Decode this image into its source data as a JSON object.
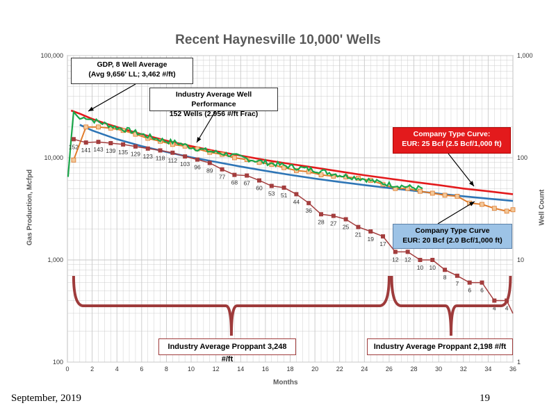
{
  "page": {
    "title": "Recent Haynesville 10,000' Wells",
    "footer_date": "September, 2019",
    "footer_page": "19"
  },
  "chart_data": {
    "type": "line",
    "title": "Recent Haynesville 10,000' Wells",
    "xlabel": "Months",
    "ylabel": "Gas Production, Mcfpd",
    "y2label": "Well Count",
    "xlim": [
      0,
      36
    ],
    "ylim": [
      100,
      100000
    ],
    "y2lim": [
      1,
      1000
    ],
    "yscale": "log",
    "y2scale": "log",
    "grid": true,
    "x_ticks": [
      "0",
      "2",
      "4",
      "6",
      "8",
      "10",
      "12",
      "14",
      "16",
      "18",
      "20",
      "22",
      "24",
      "26",
      "28",
      "30",
      "32",
      "34",
      "36"
    ],
    "y_ticks": [
      "100",
      "1,000",
      "10,000",
      "100,000"
    ],
    "y2_ticks": [
      "1",
      "10",
      "100",
      "1,000"
    ],
    "colors": {
      "gdp": "#1aa64a",
      "industry": "#e07b2a",
      "industry_marker": "#f2c79a",
      "type_curve_25": "#e31a1c",
      "type_curve_20": "#2e75b6",
      "well_count": "#a33d3d",
      "grid": "#c8c8c8"
    },
    "series": [
      {
        "key": "type_curve_25",
        "x": [
          0.3,
          1,
          2,
          3,
          4,
          6,
          8,
          10,
          12,
          14,
          16,
          18,
          20,
          22,
          24,
          26,
          28,
          30,
          32,
          34,
          36
        ],
        "y": [
          29000,
          27000,
          24000,
          21800,
          20000,
          17000,
          14700,
          13000,
          11600,
          10500,
          9500,
          8700,
          8000,
          7350,
          6750,
          6250,
          5800,
          5400,
          5000,
          4700,
          4400
        ]
      },
      {
        "key": "type_curve_20",
        "x": [
          1,
          2,
          4,
          6,
          8,
          10,
          12,
          14,
          16,
          18,
          20,
          22,
          24,
          26,
          28,
          30,
          32,
          34,
          36
        ],
        "y": [
          21000,
          18500,
          15200,
          13000,
          11400,
          10100,
          9100,
          8200,
          7450,
          6800,
          6250,
          5800,
          5400,
          5050,
          4750,
          4450,
          4200,
          3980,
          3780
        ]
      },
      {
        "key": "industry",
        "x": [
          0.5,
          1.5,
          2.5,
          3.5,
          4.5,
          5.5,
          6.5,
          7.5,
          8.5,
          9.5,
          10.5,
          11.5,
          12.5,
          13.5,
          14.5,
          15.5,
          16.5,
          17.5,
          18.5,
          19.5,
          20.5,
          21.5,
          22.5,
          23.5,
          24.5,
          25.5,
          26.5,
          27.5,
          28.5,
          29.5,
          30.5,
          31.5,
          32.5,
          33.5,
          34.5,
          35.5,
          36
        ],
        "y": [
          9500,
          20000,
          20000,
          19500,
          18500,
          17000,
          15500,
          14500,
          13500,
          13000,
          12200,
          11300,
          10800,
          10000,
          9600,
          9000,
          8600,
          8000,
          7500,
          7300,
          6800,
          6600,
          6500,
          6300,
          6000,
          5500,
          5000,
          5000,
          4700,
          4500,
          4300,
          4200,
          3600,
          3500,
          3200,
          3000,
          3100
        ]
      },
      {
        "key": "gdp",
        "x": [
          0.05,
          0.3,
          0.5,
          1,
          1.5,
          2,
          3,
          4,
          5,
          6,
          7,
          8,
          9,
          10,
          11,
          12,
          13,
          14,
          15,
          16,
          17,
          18,
          19,
          20,
          21,
          22,
          23,
          24,
          25,
          26,
          27,
          28,
          28.7
        ],
        "y": [
          6500,
          15000,
          28000,
          24000,
          25000,
          23500,
          21500,
          19700,
          18500,
          17000,
          15600,
          14600,
          13900,
          12700,
          11900,
          11300,
          10800,
          10100,
          9500,
          9000,
          8600,
          8200,
          7900,
          7600,
          7200,
          6800,
          6500,
          6200,
          5800,
          5500,
          5300,
          5100,
          5000
        ]
      },
      {
        "key": "well_count",
        "x": [
          0.5,
          1.5,
          2.5,
          3.5,
          4.5,
          5.5,
          6.5,
          7.5,
          8.5,
          9.5,
          10.5,
          11.5,
          12.5,
          13.5,
          14.5,
          15.5,
          16.5,
          17.5,
          18.5,
          19.5,
          20.5,
          21.5,
          22.5,
          23.5,
          24.5,
          25.5,
          26.5,
          27.5,
          28.5,
          29.5,
          30.5,
          31.5,
          32.5,
          33.5,
          34.5,
          35.5,
          36
        ],
        "y": [
          152,
          141,
          143,
          139,
          135,
          129,
          123,
          118,
          112,
          103,
          96,
          89,
          77,
          68,
          67,
          60,
          53,
          51,
          44,
          36,
          28,
          27,
          25,
          21,
          19,
          17,
          12,
          12,
          10,
          10,
          8,
          7,
          6,
          6,
          4,
          4,
          3
        ],
        "labels": [
          "152",
          "141",
          "143",
          "139",
          "135",
          "129",
          "123",
          "118",
          "112",
          "103",
          "96",
          "89",
          "77",
          "68",
          "67",
          "60",
          "53",
          "51",
          "44",
          "36",
          "28",
          "27",
          "25",
          "21",
          "19",
          "17",
          "12",
          "12",
          "10",
          "10",
          "8",
          "7",
          "6",
          "6",
          "4",
          "4",
          ""
        ]
      }
    ],
    "annotations": {
      "gdp_title": "GDP, 8 Well Average",
      "gdp_sub": "(Avg 9,656' LL; 3,462 #/ft)",
      "industry_title": "Industry Average Well Performance",
      "industry_sub": "152 Wells (2,956 #/ft Frac)",
      "tc25_title": "Company Type Curve:",
      "tc25_sub": "EUR: 25 Bcf (2.5 Bcf/1,000 ft)",
      "tc20_title": "Company Type Curve",
      "tc20_sub": "EUR: 20 Bcf (2.0 Bcf/1,000 ft)",
      "proppant_1": "Industry Average Proppant 3,248 #/ft",
      "proppant_2": "Industry Average Proppant 2,198 #/ft"
    }
  }
}
